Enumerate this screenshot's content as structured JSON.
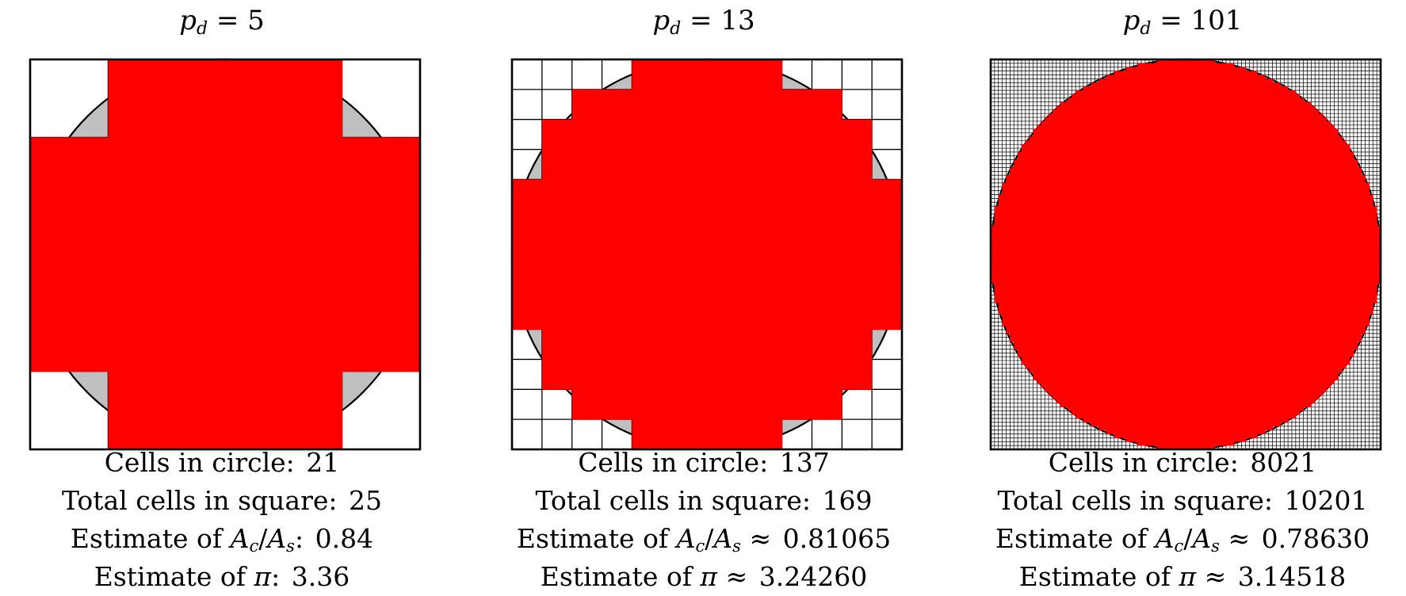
{
  "panels": [
    {
      "pd": 5,
      "title_prefix": "p",
      "title_sub": "d",
      "title_eq": " = 5",
      "cells_label": "Cells in circle:",
      "cells_value": "21",
      "total_label": "Total cells in square:",
      "total_value": "25",
      "ratio_label_pre": "Estimate of ",
      "ratio_sep": ":",
      "ratio_value": "0.84",
      "pi_label_pre": "Estimate of ",
      "pi_sep": ":",
      "pi_value": "3.36"
    },
    {
      "pd": 13,
      "title_prefix": "p",
      "title_sub": "d",
      "title_eq": " = 13",
      "cells_label": "Cells in circle:",
      "cells_value": "137",
      "total_label": "Total cells in square:",
      "total_value": "169",
      "ratio_label_pre": "Estimate of ",
      "ratio_sep": "≈",
      "ratio_value": "0.81065",
      "pi_label_pre": "Estimate of ",
      "pi_sep": "≈",
      "pi_value": "3.24260"
    },
    {
      "pd": 101,
      "title_prefix": "p",
      "title_sub": "d",
      "title_eq": " = 101",
      "cells_label": "Cells in circle:",
      "cells_value": "8021",
      "total_label": "Total cells in square:",
      "total_value": "10201",
      "ratio_label_pre": "Estimate of ",
      "ratio_sep": "≈",
      "ratio_value": "0.78630",
      "pi_label_pre": "Estimate of ",
      "pi_sep": "≈",
      "pi_value": "3.14518"
    }
  ],
  "symbols": {
    "area_c": "A",
    "sub_c": "c",
    "slash": "/",
    "area_s": "A",
    "sub_s": "s",
    "pi": "π"
  },
  "colors": {
    "fill_inside": "#ff0000",
    "circle_fill": "#c0c0c0",
    "grid_line": "#000000",
    "background": "#ffffff"
  }
}
